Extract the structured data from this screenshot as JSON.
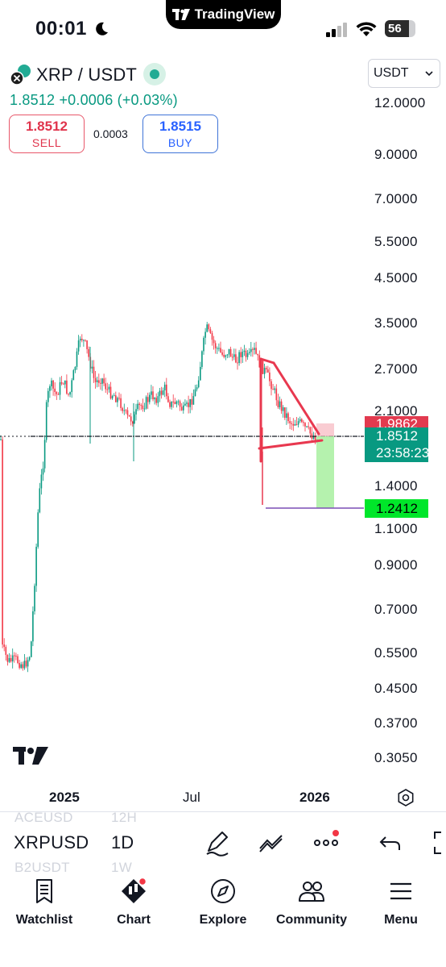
{
  "status_bar": {
    "time": "00:01",
    "app_name": "TradingView",
    "battery": "56"
  },
  "symbol": {
    "title": "XRP / USDT",
    "last_price": "1.8512",
    "change": "+0.0006",
    "change_pct": "(+0.03%)",
    "sell_price": "1.8512",
    "sell_label": "SELL",
    "buy_price": "1.8515",
    "buy_label": "BUY",
    "spread": "0.0003",
    "currency": "USDT"
  },
  "chart_data": {
    "type": "candlestick",
    "y_scale": "log",
    "y_ticks": [
      "12.0000",
      "9.0000",
      "7.0000",
      "5.5000",
      "4.5000",
      "3.5000",
      "2.7000",
      "2.1000",
      "1.4000",
      "1.1000",
      "0.9000",
      "0.7000",
      "0.5500",
      "0.4500",
      "0.3700",
      "0.3050"
    ],
    "x_ticks": [
      "2025",
      "Jul",
      "2026"
    ],
    "last_price_label": "1.8512",
    "countdown": "23:58:23",
    "alert_label": "1.9862",
    "target_label": "1.2412"
  },
  "toolbar": {
    "symbol": "XRPUSD",
    "interval": "1D",
    "prev_symbol": "ACEUSD",
    "prev_interval": "12H",
    "next_symbol": "B2USDT",
    "next_interval": "1W"
  },
  "nav": {
    "watchlist": "Watchlist",
    "chart": "Chart",
    "explore": "Explore",
    "community": "Community",
    "menu": "Menu"
  },
  "colors": {
    "up": "#089981",
    "down": "#f23645",
    "accent": "#2962ff"
  }
}
